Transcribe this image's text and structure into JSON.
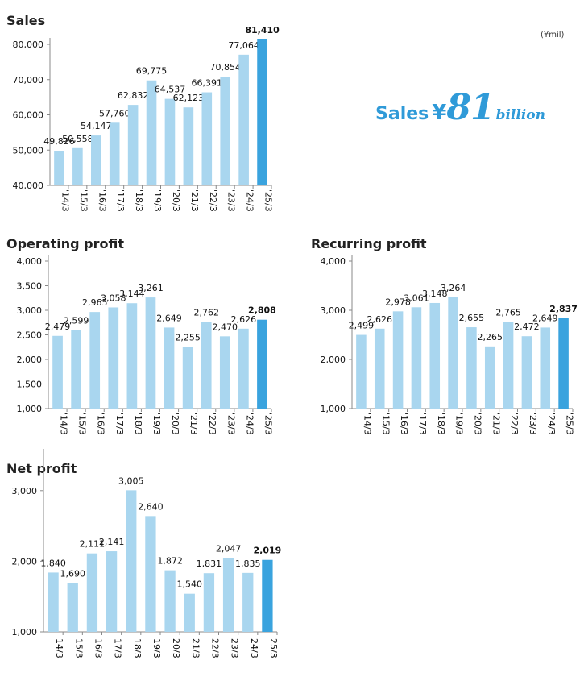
{
  "colors": {
    "bar": "#a9d6ef",
    "highlight": "#3aa3de",
    "axis": "#888888",
    "callout": "#2f9ad8"
  },
  "unit_note": "(¥mil)",
  "callout": {
    "word": "Sales",
    "yen": "¥",
    "number": "81",
    "unit": "billion"
  },
  "chart_data": [
    {
      "type": "bar",
      "title": "Sales",
      "categories": [
        "'14/3",
        "'15/3",
        "'16/3",
        "'17/3",
        "'18/3",
        "'19/3",
        "'20/3",
        "'21/3",
        "'22/3",
        "'23/3",
        "'24/3",
        "'25/3"
      ],
      "values": [
        49826,
        50558,
        54147,
        57760,
        62832,
        69775,
        64537,
        62123,
        66391,
        70854,
        77064,
        81410
      ],
      "labels": [
        "49,826",
        "50,558",
        "54,147",
        "57,760",
        "62,832",
        "69,775",
        "64,537",
        "62,123",
        "66,391",
        "70,854",
        "77,064",
        "81,410"
      ],
      "ylim": [
        40000,
        80000
      ],
      "yticks": [
        "40,000",
        "50,000",
        "60,000",
        "70,000",
        "80,000"
      ],
      "highlight_index": 11,
      "grid": false,
      "legend": "none"
    },
    {
      "type": "bar",
      "title": "Operating profit",
      "categories": [
        "'14/3",
        "'15/3",
        "'16/3",
        "'17/3",
        "'18/3",
        "'19/3",
        "'20/3",
        "'21/3",
        "'22/3",
        "'23/3",
        "'24/3",
        "'25/3"
      ],
      "values": [
        2479,
        2599,
        2965,
        3058,
        3144,
        3261,
        2649,
        2255,
        2762,
        2470,
        2626,
        2808
      ],
      "labels": [
        "2,479",
        "2,599",
        "2,965",
        "3,058",
        "3,144",
        "3,261",
        "2,649",
        "2,255",
        "2,762",
        "2,470",
        "2,626",
        "2,808"
      ],
      "ylim": [
        1000,
        4000
      ],
      "yticks": [
        "1,000",
        "1,500",
        "2,000",
        "2,500",
        "3,000",
        "3,500",
        "4,000"
      ],
      "highlight_index": 11,
      "grid": false,
      "legend": "none"
    },
    {
      "type": "bar",
      "title": "Recurring profit",
      "categories": [
        "'14/3",
        "'15/3",
        "'16/3",
        "'17/3",
        "'18/3",
        "'19/3",
        "'20/3",
        "'21/3",
        "'22/3",
        "'23/3",
        "'24/3",
        "'25/3"
      ],
      "values": [
        2499,
        2626,
        2978,
        3061,
        3148,
        3264,
        2655,
        2265,
        2765,
        2472,
        2649,
        2837
      ],
      "labels": [
        "2,499",
        "2,626",
        "2,978",
        "3,061",
        "3,148",
        "3,264",
        "2,655",
        "2,265",
        "2,765",
        "2,472",
        "2,649",
        "2,837"
      ],
      "ylim": [
        1000,
        4000
      ],
      "yticks": [
        "1,000",
        "2,000",
        "3,000",
        "4,000"
      ],
      "highlight_index": 11,
      "grid": false,
      "legend": "none"
    },
    {
      "type": "bar",
      "title": "Net profit",
      "categories": [
        "'14/3",
        "'15/3",
        "'16/3",
        "'17/3",
        "'18/3",
        "'19/3",
        "'20/3",
        "'21/3",
        "'22/3",
        "'23/3",
        "'24/3",
        "'25/3"
      ],
      "values": [
        1840,
        1690,
        2111,
        2141,
        3005,
        2640,
        1872,
        1540,
        1831,
        2047,
        1835,
        2019
      ],
      "labels": [
        "1,840",
        "1,690",
        "2,111",
        "2,141",
        "3,005",
        "2,640",
        "1,872",
        "1,540",
        "1,831",
        "2,047",
        "1,835",
        "2,019"
      ],
      "ylim": [
        1000,
        3500
      ],
      "yticks": [
        "1,000",
        "2,000",
        "3,000"
      ],
      "yticks_values": [
        1000,
        2000,
        3000
      ],
      "highlight_index": 11,
      "grid": false,
      "legend": "none"
    }
  ]
}
